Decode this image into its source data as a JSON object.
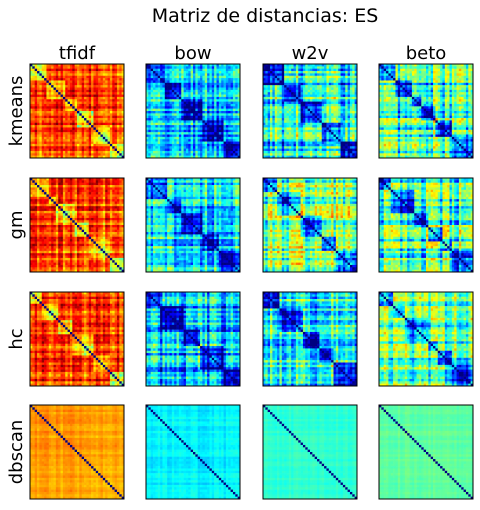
{
  "chart_data": {
    "type": "heatmap",
    "title": "Matriz de distancias: ES",
    "columns": [
      "tfidf",
      "bow",
      "w2v",
      "beto"
    ],
    "rows": [
      "kmeans",
      "gm",
      "hc",
      "dbscan"
    ],
    "colormap": "jet",
    "panels": [
      {
        "row": "kmeans",
        "column": "tfidf",
        "mean_distance": 0.82,
        "variation": 0.4,
        "n_blocks": 6
      },
      {
        "row": "kmeans",
        "column": "bow",
        "mean_distance": 0.32,
        "variation": 0.55,
        "n_blocks": 5
      },
      {
        "row": "kmeans",
        "column": "w2v",
        "mean_distance": 0.38,
        "variation": 0.6,
        "n_blocks": 5
      },
      {
        "row": "kmeans",
        "column": "beto",
        "mean_distance": 0.42,
        "variation": 0.6,
        "n_blocks": 6
      },
      {
        "row": "gm",
        "column": "tfidf",
        "mean_distance": 0.8,
        "variation": 0.4,
        "n_blocks": 6
      },
      {
        "row": "gm",
        "column": "bow",
        "mean_distance": 0.35,
        "variation": 0.5,
        "n_blocks": 5
      },
      {
        "row": "gm",
        "column": "w2v",
        "mean_distance": 0.5,
        "variation": 0.55,
        "n_blocks": 5
      },
      {
        "row": "gm",
        "column": "beto",
        "mean_distance": 0.42,
        "variation": 0.55,
        "n_blocks": 6
      },
      {
        "row": "hc",
        "column": "tfidf",
        "mean_distance": 0.8,
        "variation": 0.4,
        "n_blocks": 6
      },
      {
        "row": "hc",
        "column": "bow",
        "mean_distance": 0.3,
        "variation": 0.55,
        "n_blocks": 5
      },
      {
        "row": "hc",
        "column": "w2v",
        "mean_distance": 0.4,
        "variation": 0.55,
        "n_blocks": 5
      },
      {
        "row": "hc",
        "column": "beto",
        "mean_distance": 0.45,
        "variation": 0.5,
        "n_blocks": 6
      },
      {
        "row": "dbscan",
        "column": "tfidf",
        "mean_distance": 0.72,
        "variation": 0.1,
        "n_blocks": 1
      },
      {
        "row": "dbscan",
        "column": "bow",
        "mean_distance": 0.36,
        "variation": 0.1,
        "n_blocks": 1
      },
      {
        "row": "dbscan",
        "column": "w2v",
        "mean_distance": 0.42,
        "variation": 0.06,
        "n_blocks": 1
      },
      {
        "row": "dbscan",
        "column": "beto",
        "mean_distance": 0.47,
        "variation": 0.06,
        "n_blocks": 1
      }
    ]
  }
}
